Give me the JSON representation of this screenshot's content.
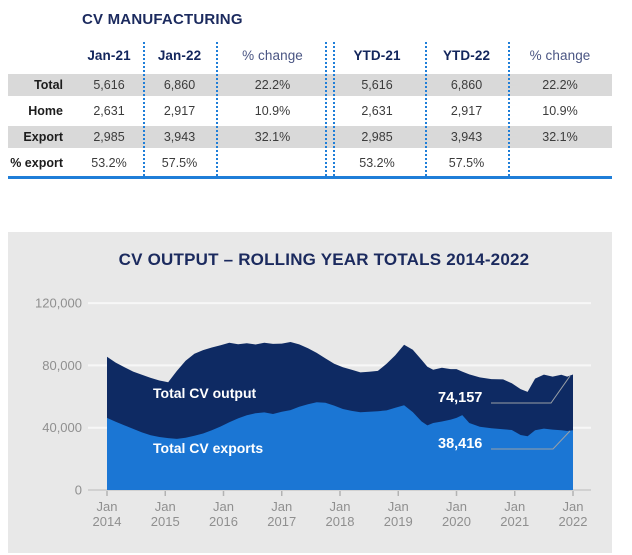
{
  "manufacturing": {
    "title": "CV MANUFACTURING",
    "table": {
      "col_headers": [
        "",
        "Jan-21",
        "Jan-22",
        "% change",
        "YTD-21",
        "YTD-22",
        "% change"
      ],
      "rows": [
        {
          "label": "Total",
          "shaded": true,
          "values": [
            "5,616",
            "6,860",
            "22.2%",
            "5,616",
            "6,860",
            "22.2%"
          ]
        },
        {
          "label": "Home",
          "shaded": false,
          "values": [
            "2,631",
            "2,917",
            "10.9%",
            "2,631",
            "2,917",
            "10.9%"
          ]
        },
        {
          "label": "Export",
          "shaded": true,
          "values": [
            "2,985",
            "3,943",
            "32.1%",
            "2,985",
            "3,943",
            "32.1%"
          ]
        },
        {
          "label": "% export",
          "shaded": false,
          "values": [
            "53.2%",
            "57.5%",
            "",
            "53.2%",
            "57.5%",
            ""
          ]
        }
      ]
    }
  },
  "chart_data": {
    "type": "area",
    "title": "CV OUTPUT – ROLLING YEAR TOTALS 2014-2022",
    "grid": true,
    "legend_position": "inline-labels",
    "ylim": [
      0,
      120000
    ],
    "yticks": [
      0,
      40000,
      80000,
      120000
    ],
    "ytick_labels": [
      "0",
      "40,000",
      "80,000",
      "120,000"
    ],
    "xtick_month": "Jan",
    "xtick_years": [
      "2014",
      "2015",
      "2016",
      "2017",
      "2018",
      "2019",
      "2020",
      "2021",
      "2022"
    ],
    "x": [
      2014.0,
      2014.15,
      2014.3,
      2014.45,
      2014.6,
      2014.75,
      2014.9,
      2015.05,
      2015.2,
      2015.35,
      2015.5,
      2015.65,
      2015.8,
      2015.95,
      2016.1,
      2016.25,
      2016.4,
      2016.55,
      2016.7,
      2016.85,
      2017.0,
      2017.15,
      2017.3,
      2017.45,
      2017.6,
      2017.75,
      2017.9,
      2018.05,
      2018.2,
      2018.35,
      2018.5,
      2018.65,
      2018.8,
      2018.95,
      2019.1,
      2019.25,
      2019.4,
      2019.5,
      2019.6,
      2019.75,
      2019.9,
      2020.0,
      2020.1,
      2020.22,
      2020.4,
      2020.6,
      2020.8,
      2020.95,
      2021.1,
      2021.22,
      2021.35,
      2021.5,
      2021.65,
      2021.8,
      2021.9,
      2022.0
    ],
    "series": [
      {
        "name": "Total CV output",
        "color": "#0e2a63",
        "final_value_label": "74,157",
        "values": [
          85500,
          81800,
          78800,
          76000,
          74000,
          72000,
          70300,
          69200,
          76500,
          83000,
          87500,
          89800,
          91500,
          93000,
          94500,
          93600,
          94200,
          93400,
          94500,
          93800,
          94000,
          95000,
          93500,
          91000,
          88000,
          84500,
          81000,
          78800,
          77200,
          75500,
          75900,
          76500,
          81000,
          86500,
          93300,
          90000,
          83500,
          79100,
          77200,
          78500,
          77600,
          77600,
          76000,
          74200,
          72300,
          71200,
          71000,
          68500,
          64800,
          63000,
          71500,
          74100,
          72800,
          74000,
          72800,
          74157
        ]
      },
      {
        "name": "Total CV exports",
        "color": "#1b76d4",
        "final_value_label": "38,416",
        "values": [
          46300,
          43800,
          41500,
          39200,
          37000,
          35200,
          34000,
          33300,
          32800,
          33500,
          34800,
          36300,
          38300,
          40800,
          43500,
          46000,
          48000,
          49300,
          49800,
          48800,
          50200,
          51300,
          53400,
          55000,
          56400,
          56000,
          54200,
          52000,
          50800,
          49900,
          50200,
          50600,
          51100,
          52800,
          54400,
          50000,
          44000,
          41500,
          43000,
          44000,
          45200,
          46300,
          48100,
          43000,
          40600,
          39600,
          39000,
          38500,
          35300,
          34500,
          38300,
          39400,
          38800,
          38300,
          37900,
          38416
        ]
      }
    ]
  }
}
